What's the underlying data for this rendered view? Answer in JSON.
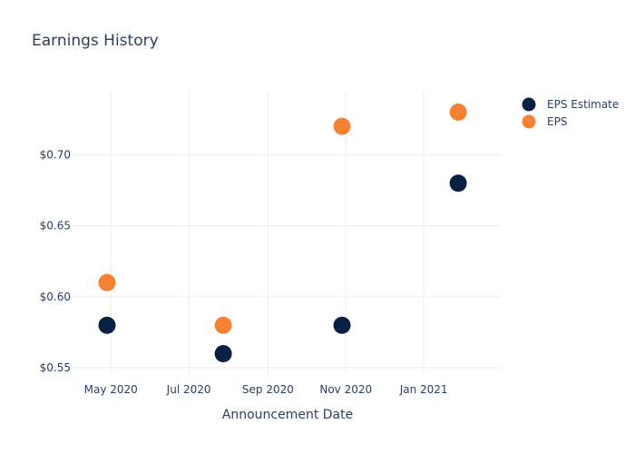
{
  "chart_data": {
    "type": "scatter",
    "title": "Earnings History",
    "xlabel": "Announcement Date",
    "ylabel": "",
    "x_axis_type": "date",
    "xlim": [
      "2020-04-01",
      "2021-03-03"
    ],
    "ylim": [
      0.545,
      0.745
    ],
    "x_ticks": [
      {
        "value": "2020-05-01",
        "label": "May 2020"
      },
      {
        "value": "2020-07-01",
        "label": "Jul 2020"
      },
      {
        "value": "2020-09-01",
        "label": "Sep 2020"
      },
      {
        "value": "2020-11-01",
        "label": "Nov 2020"
      },
      {
        "value": "2021-01-01",
        "label": "Jan 2021"
      }
    ],
    "y_ticks": [
      {
        "value": 0.55,
        "label": "$0.55"
      },
      {
        "value": 0.6,
        "label": "$0.60"
      },
      {
        "value": 0.65,
        "label": "$0.65"
      },
      {
        "value": 0.7,
        "label": "$0.70"
      }
    ],
    "grid": true,
    "legend_position": "top-right",
    "series": [
      {
        "name": "EPS Estimate",
        "color": "#0a1f44",
        "points": [
          {
            "x": "2020-04-28",
            "y": 0.58
          },
          {
            "x": "2020-07-28",
            "y": 0.56
          },
          {
            "x": "2020-10-29",
            "y": 0.58
          },
          {
            "x": "2021-01-28",
            "y": 0.68
          }
        ]
      },
      {
        "name": "EPS",
        "color": "#f58233",
        "points": [
          {
            "x": "2020-04-28",
            "y": 0.61
          },
          {
            "x": "2020-07-28",
            "y": 0.58
          },
          {
            "x": "2020-10-29",
            "y": 0.72
          },
          {
            "x": "2021-01-28",
            "y": 0.73
          }
        ]
      }
    ]
  }
}
